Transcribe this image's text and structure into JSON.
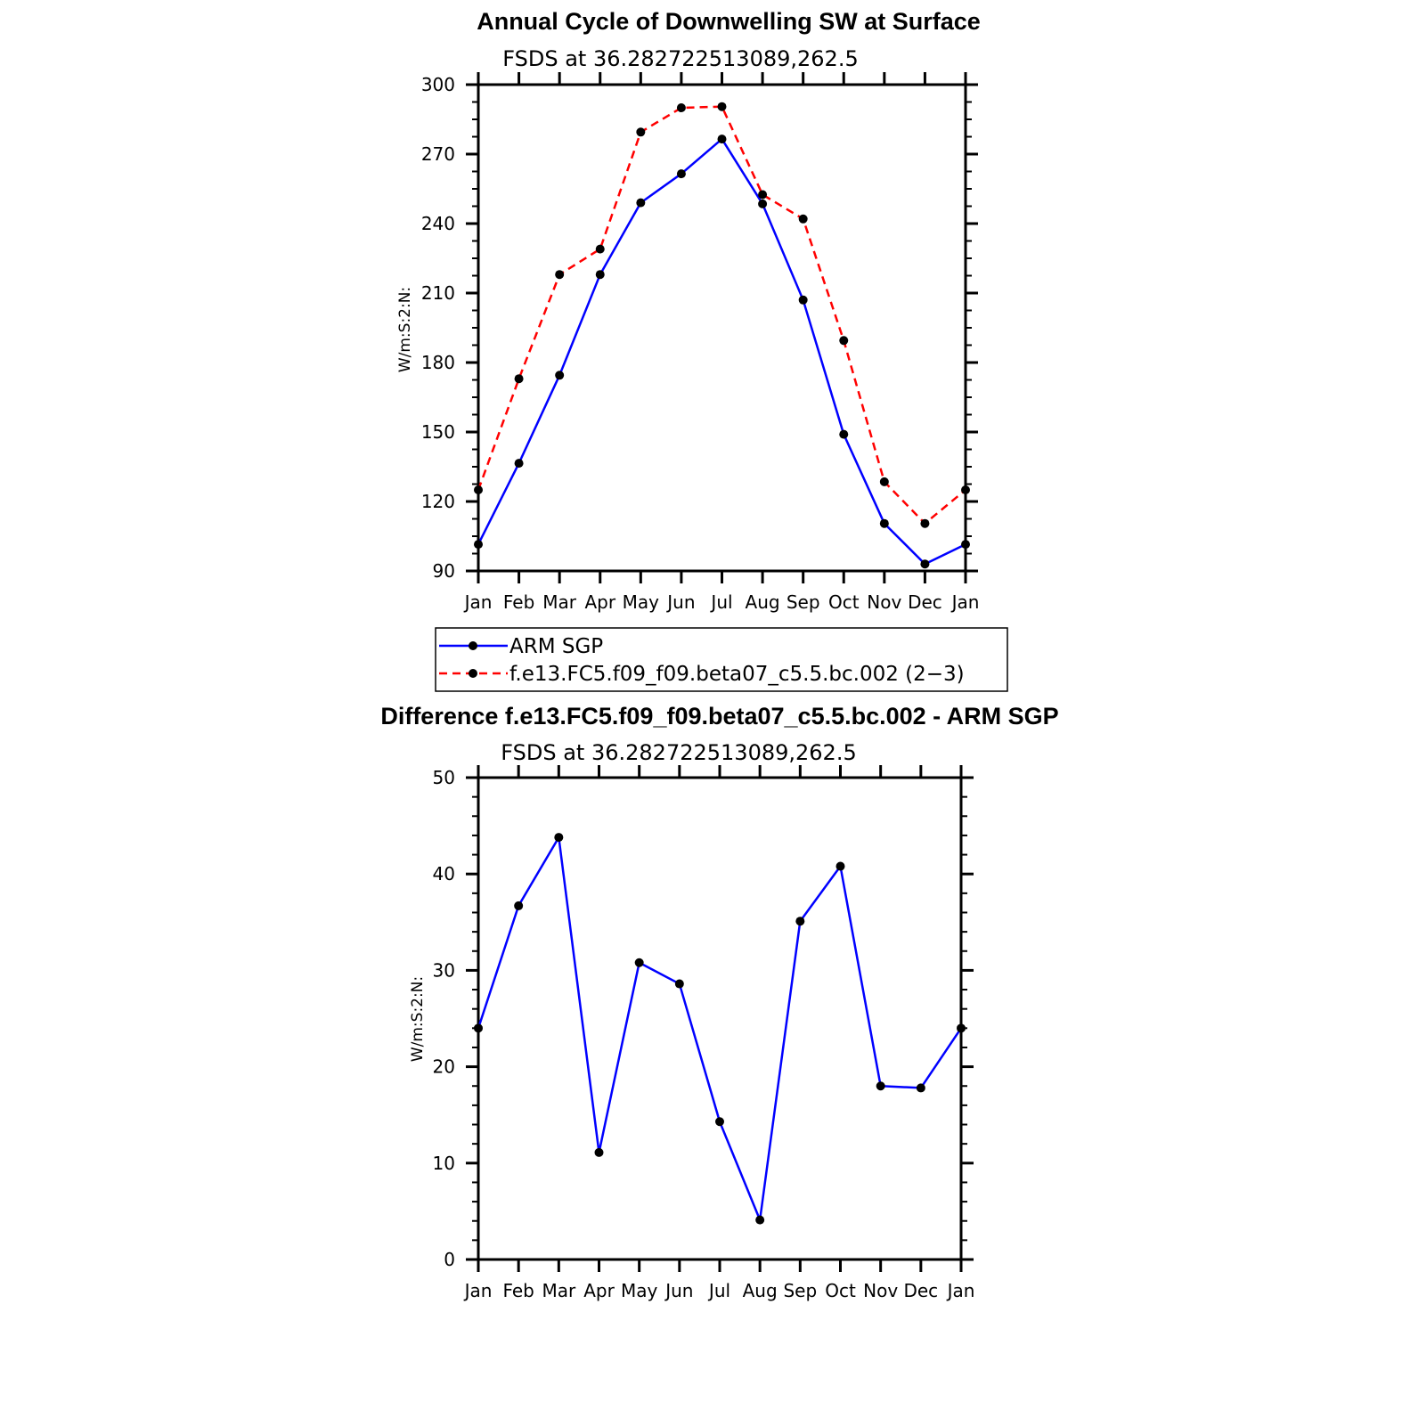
{
  "chart_data": [
    {
      "type": "line",
      "title": "Annual Cycle of Downwelling SW at Surface",
      "subtitle": "FSDS at 36.282722513089,262.5",
      "ylabel": "W/m:S:2:N:",
      "ylim": [
        90,
        300
      ],
      "yticks": [
        90,
        120,
        150,
        180,
        210,
        240,
        270,
        300
      ],
      "categories": [
        "Jan",
        "Feb",
        "Mar",
        "Apr",
        "May",
        "Jun",
        "Jul",
        "Aug",
        "Sep",
        "Oct",
        "Nov",
        "Dec",
        "Jan"
      ],
      "series": [
        {
          "name": "ARM SGP",
          "color": "#0000ff",
          "dash": "solid",
          "values": [
            101.5,
            136.5,
            174.5,
            218,
            249,
            261.5,
            276.5,
            248.5,
            207,
            149,
            110.5,
            93,
            101.5
          ]
        },
        {
          "name": "f.e13.FC5.f09_f09.beta07_c5.5.bc.002 (2−3)",
          "color": "#ff0000",
          "dash": "dashed",
          "values": [
            125,
            173,
            218,
            229,
            279.5,
            290,
            290.5,
            252.5,
            242,
            189.5,
            128.5,
            110.5,
            125
          ]
        }
      ],
      "legend": "below"
    },
    {
      "type": "line",
      "title": "Difference f.e13.FC5.f09_f09.beta07_c5.5.bc.002 - ARM SGP",
      "subtitle": "FSDS at 36.282722513089,262.5",
      "ylabel": "W/m:S:2:N:",
      "ylim": [
        0,
        50
      ],
      "yticks": [
        0,
        10,
        20,
        30,
        40,
        50
      ],
      "categories": [
        "Jan",
        "Feb",
        "Mar",
        "Apr",
        "May",
        "Jun",
        "Jul",
        "Aug",
        "Sep",
        "Oct",
        "Nov",
        "Dec",
        "Jan"
      ],
      "series": [
        {
          "color": "#0000ff",
          "dash": "solid",
          "values": [
            24,
            36.7,
            43.8,
            11.1,
            30.8,
            28.6,
            14.3,
            4.1,
            35.1,
            40.8,
            18,
            17.8,
            24
          ]
        }
      ]
    }
  ]
}
